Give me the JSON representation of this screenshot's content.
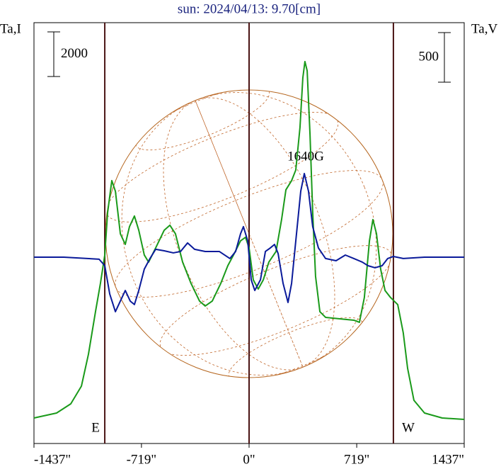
{
  "chart_data": {
    "type": "line",
    "title": "sun: 2024/04/13: 9.70[cm]",
    "y_label": "Ta,I",
    "y2_label": "Ta,V",
    "y_scale_bar": 2000,
    "y2_scale_bar": 500,
    "annotation": "1640G",
    "east_label": "E",
    "west_label": "W",
    "xlim": [
      -1437,
      1437
    ],
    "xticks": [
      {
        "value": -1437,
        "label": "-1437\""
      },
      {
        "value": -719,
        "label": "-719\""
      },
      {
        "value": 0,
        "label": "0\""
      },
      {
        "value": 719,
        "label": "719\""
      },
      {
        "value": 1437,
        "label": "1437\""
      }
    ],
    "vlines": [
      -964,
      0,
      964
    ],
    "ylim": [
      -1143,
      17714
    ],
    "y2lim": [
      -1879,
      2364
    ],
    "series": [
      {
        "name": "Ta,I",
        "color": "#1a9a1a",
        "axis": "y",
        "x": [
          -1437,
          -1286,
          -1191,
          -1120,
          -1073,
          -1026,
          -993,
          -964,
          -945,
          -917,
          -893,
          -860,
          -827,
          -799,
          -766,
          -737,
          -700,
          -671,
          -624,
          -567,
          -529,
          -492,
          -444,
          -388,
          -331,
          -293,
          -246,
          -189,
          -142,
          -104,
          -57,
          -24,
          0,
          28,
          61,
          95,
          132,
          180,
          217,
          246,
          284,
          312,
          340,
          359,
          373,
          388,
          407,
          425,
          444,
          473,
          511,
          605,
          700,
          737,
          770,
          804,
          827,
          851,
          879,
          908,
          945,
          993,
          1030,
          1059,
          1101,
          1172,
          1290,
          1437
        ],
        "values": [
          0,
          222,
          635,
          1429,
          2858,
          4763,
          6033,
          7303,
          9208,
          10637,
          10161,
          8256,
          7779,
          8573,
          9049,
          8414,
          7303,
          6985,
          7620,
          8414,
          8637,
          8256,
          6985,
          6033,
          5239,
          5017,
          5239,
          6033,
          6826,
          7303,
          7938,
          8097,
          7620,
          6191,
          5779,
          6191,
          6985,
          7461,
          8890,
          10224,
          10637,
          11113,
          13018,
          15241,
          15971,
          15559,
          12701,
          9208,
          6350,
          4763,
          4509,
          4445,
          4382,
          4286,
          5398,
          7938,
          8891,
          8256,
          6668,
          5715,
          5398,
          5080,
          3810,
          2223,
          794,
          222,
          0,
          -64
        ]
      },
      {
        "name": "Ta,V",
        "color": "#0a1a9a",
        "axis": "y2",
        "x": [
          -1437,
          -1238,
          -1002,
          -964,
          -931,
          -893,
          -860,
          -827,
          -794,
          -766,
          -737,
          -700,
          -662,
          -624,
          -567,
          -506,
          -458,
          -411,
          -364,
          -293,
          -199,
          -128,
          -90,
          -57,
          -38,
          -9,
          14,
          38,
          76,
          109,
          142,
          170,
          194,
          227,
          260,
          284,
          312,
          345,
          369,
          397,
          425,
          463,
          511,
          581,
          643,
          700,
          756,
          794,
          841,
          889,
          926,
          964,
          1030,
          1172,
          1437
        ],
        "values": [
          0,
          0,
          -21,
          -86,
          -371,
          -550,
          -443,
          -336,
          -443,
          -478,
          -336,
          -121,
          -14,
          79,
          64,
          43,
          57,
          143,
          79,
          57,
          57,
          -14,
          57,
          236,
          307,
          164,
          -228,
          -336,
          -228,
          57,
          93,
          128,
          36,
          -264,
          -457,
          -264,
          164,
          664,
          843,
          664,
          307,
          93,
          -14,
          -36,
          21,
          -14,
          -50,
          -86,
          -107,
          -86,
          -14,
          7,
          -14,
          0,
          0
        ]
      }
    ]
  }
}
